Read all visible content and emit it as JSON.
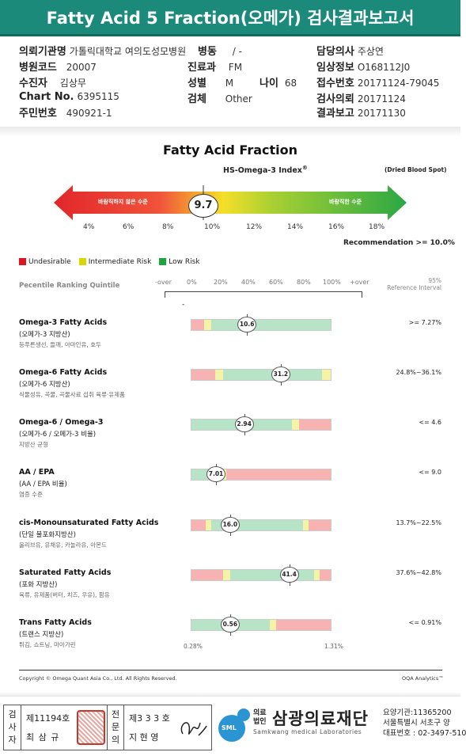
{
  "title": "Fatty Acid 5 Fraction(오메가) 검사결과보고서",
  "info": {
    "institution_label": "의뢰기관명",
    "institution_value": "가톨릭대학교 여의도성모병원",
    "ward_label": "병동",
    "ward_value": "/ -",
    "doctor_label": "담당의사",
    "doctor_value": "주상연",
    "hospital_code_label": "병원코드",
    "hospital_code_value": "20007",
    "dept_label": "진료과",
    "dept_value": "FM",
    "clinical_label": "임상정보",
    "clinical_value": "O168112J0",
    "patient_label": "수진자",
    "patient_value": "김상무",
    "sex_label": "성별",
    "sex_value": "M",
    "age_label": "나이",
    "age_value": "68",
    "receipt_label": "접수번호",
    "receipt_value": "20171124-79045",
    "chart_label": "Chart No.",
    "chart_value": "6395115",
    "specimen_label": "검체",
    "specimen_value": "Other",
    "request_label": "검사의뢰",
    "request_value": "20171124",
    "id_label": "주민번호",
    "id_value": "490921-1",
    "report_label": "결과보고",
    "report_value": "20171130"
  },
  "index_section": {
    "heading": "Fatty Acid Fraction",
    "subheading": "HS-Omega-3 Index",
    "superscript": "®",
    "sample_note": "(Dried Blood Spot)",
    "left_arrow_text": "바람직하지 않은 수준",
    "right_arrow_text": "바람직한 수준",
    "value": "9.7",
    "ticks": [
      "4%",
      "6%",
      "8%",
      "10%",
      "12%",
      "14%",
      "16%",
      "18%"
    ],
    "recommendation": "Recommendation  >= 10.0%"
  },
  "legend": [
    {
      "label": "Undesirable",
      "color": "#e0141e"
    },
    {
      "label": "Intermediate Risk",
      "color": "#d8d800"
    },
    {
      "label": "Low Risk",
      "color": "#1aa63a"
    }
  ],
  "ranking": {
    "label": "Pecentile Ranking Quintile",
    "ticks": [
      "-over",
      "0%",
      "20%",
      "40%",
      "60%",
      "80%",
      "100%",
      "+over"
    ],
    "ref_label_1": "95%",
    "ref_label_2": "Reference Interval",
    "dash": "-"
  },
  "colors": {
    "red": "#f6b3b1",
    "yellow": "#f5f3a6",
    "green": "#b7e3c7"
  },
  "rows": [
    {
      "title": "Omega-3 Fatty Acids",
      "sub": "(오메가-3 지방산)",
      "foods": "등푸른생선, 들깨, 아마인유, 호두",
      "value": "10.6",
      "ref": ">= 7.27%",
      "segs": [
        [
          "red",
          9
        ],
        [
          "yellow",
          5
        ],
        [
          "green",
          86
        ]
      ],
      "pos": 40
    },
    {
      "title": "Omega-6 Fatty Acids",
      "sub": "(오메가-6 지방산)",
      "foods": "식물성유, 곡물, 곡물사료 섭취 육류·유제품",
      "value": "31.2",
      "ref": "24.8%~36.1%",
      "segs": [
        [
          "red",
          17
        ],
        [
          "yellow",
          6
        ],
        [
          "green",
          71
        ],
        [
          "yellow",
          6
        ]
      ],
      "pos": 64
    },
    {
      "title": "Omega-6 / Omega-3",
      "sub": "(오메가-6 / 오메가-3 비율)",
      "foods": "지방산 균형",
      "value": "2.94",
      "ref": "<= 4.6",
      "segs": [
        [
          "green",
          72
        ],
        [
          "yellow",
          5
        ],
        [
          "red",
          23
        ]
      ],
      "pos": 38
    },
    {
      "title": "AA / EPA",
      "sub": "(AA / EPA 비율)",
      "foods": "염증 수준",
      "value": "7.01",
      "ref": "<= 9.0",
      "segs": [
        [
          "green",
          22
        ],
        [
          "yellow",
          3
        ],
        [
          "red",
          75
        ]
      ],
      "pos": 18
    },
    {
      "title": "cis-Monounsaturated Fatty Acids",
      "sub": "(단일 불포화지방산)",
      "foods": "올리브유, 유채유, 카놀라유, 아몬드",
      "value": "16.0",
      "ref": "13.7%~22.5%",
      "segs": [
        [
          "red",
          10
        ],
        [
          "yellow",
          4
        ],
        [
          "green",
          66
        ],
        [
          "yellow",
          4
        ],
        [
          "red",
          16
        ]
      ],
      "pos": 28
    },
    {
      "title": "Saturated Fatty Acids",
      "sub": "(포화 지방산)",
      "foods": "육류, 유제품(버터, 치즈, 우유), 팜유",
      "value": "41.4",
      "ref": "37.6%~42.8%",
      "segs": [
        [
          "red",
          23
        ],
        [
          "yellow",
          5
        ],
        [
          "green",
          60
        ],
        [
          "yellow",
          4
        ],
        [
          "red",
          8
        ]
      ],
      "pos": 70
    },
    {
      "title": "Trans Fatty Acids",
      "sub": "(트랜스 지방산)",
      "foods": "튀김, 쇼트닝, 마아가린",
      "value": "0.56",
      "ref": "<= 0.91%",
      "segs": [
        [
          "green",
          56
        ],
        [
          "yellow",
          5
        ],
        [
          "red",
          39
        ]
      ],
      "pos": 28
    }
  ],
  "trans_ticks": {
    "left": "0.28%",
    "right": "1.31%"
  },
  "footer": {
    "copyright": "Copyright © Omega Quant Asia Co., Ltd.  All Rights Reserved.",
    "brand": "OQA Analytics™"
  },
  "signature": {
    "examiner_label": [
      "검",
      "사",
      "자"
    ],
    "examiner_no": "제11194호",
    "examiner_name": "최 삼 규",
    "specialist_label": [
      "전",
      "문",
      "의"
    ],
    "specialist_no": "제3 3 3 호",
    "specialist_name": "지 현 영"
  },
  "foundation": {
    "corp_label_1": "의료",
    "corp_label_2": "법인",
    "name": "삼광의료재단",
    "name_en": "Samkwang medical Laboratories",
    "logo_text": "SML",
    "line1": "요양기관:11365200",
    "line2": "서울특별시 서초구 양",
    "line3": "대표번호 : 02-3497-510"
  }
}
